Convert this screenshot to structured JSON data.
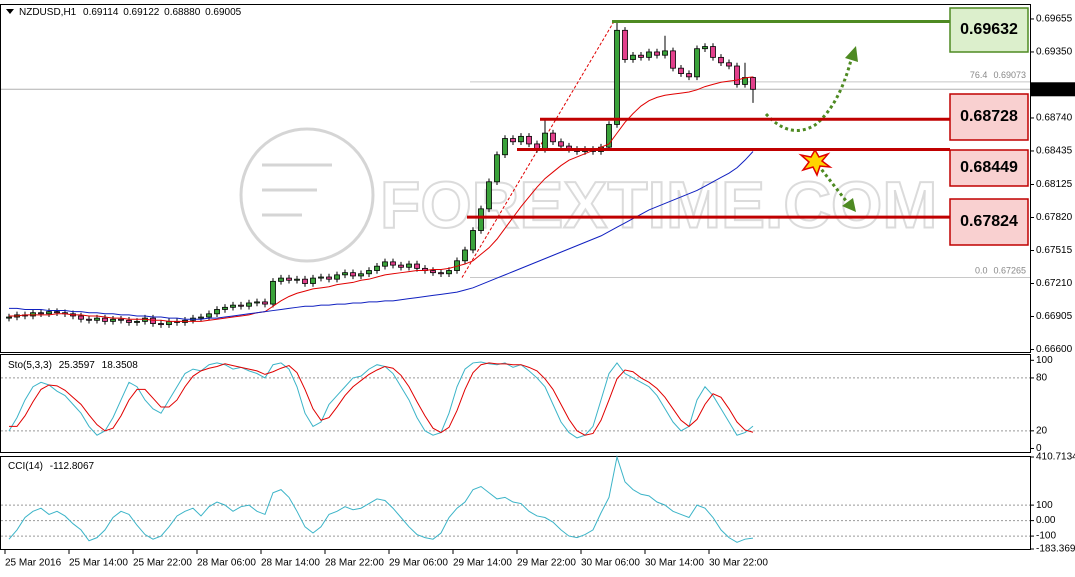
{
  "chart_data": [
    {
      "type": "candlestick",
      "symbol": "NZDUSD,H1",
      "header_values": [
        "0.69114",
        "0.69122",
        "0.68880",
        "0.69005"
      ],
      "watermark": "FOREXTIME.COM",
      "categories": [
        "25 Mar 2016",
        null,
        null,
        null,
        null,
        null,
        null,
        null,
        "25 Mar 14:00",
        null,
        null,
        null,
        null,
        null,
        null,
        null,
        "25 Mar 22:00",
        null,
        null,
        null,
        null,
        null,
        null,
        null,
        "28 Mar 06:00",
        null,
        null,
        null,
        null,
        null,
        null,
        null,
        "28 Mar 14:00",
        null,
        null,
        null,
        null,
        null,
        null,
        null,
        "28 Mar 22:00",
        null,
        null,
        null,
        null,
        null,
        null,
        null,
        "29 Mar 06:00",
        null,
        null,
        null,
        null,
        null,
        null,
        null,
        "29 Mar 14:00",
        null,
        null,
        null,
        null,
        null,
        null,
        null,
        "29 Mar 22:00",
        null,
        null,
        null,
        null,
        null,
        null,
        null,
        "30 Mar 06:00",
        null,
        null,
        null,
        null,
        null,
        null,
        null,
        "30 Mar 14:00",
        null,
        null,
        null,
        null,
        null,
        null,
        null,
        "30 Mar 22:00",
        null,
        null,
        null,
        null,
        null
      ],
      "open": [
        0.6689,
        0.669,
        0.6692,
        0.6691,
        0.6694,
        0.6693,
        0.6695,
        0.6694,
        0.6693,
        0.6691,
        0.6688,
        0.6687,
        0.6689,
        0.6686,
        0.6688,
        0.6687,
        0.6685,
        0.6686,
        0.6689,
        0.6684,
        0.6683,
        0.6686,
        0.6685,
        0.6687,
        0.6689,
        0.669,
        0.6693,
        0.6697,
        0.6699,
        0.6701,
        0.67,
        0.6703,
        0.6704,
        0.6702,
        0.6723,
        0.6726,
        0.6724,
        0.6725,
        0.6721,
        0.6726,
        0.6727,
        0.6725,
        0.6729,
        0.6731,
        0.6728,
        0.673,
        0.6733,
        0.6737,
        0.6741,
        0.6738,
        0.6736,
        0.6739,
        0.6735,
        0.6733,
        0.6731,
        0.673,
        0.6733,
        0.6742,
        0.6752,
        0.677,
        0.679,
        0.6815,
        0.684,
        0.6855,
        0.6852,
        0.6857,
        0.685,
        0.6845,
        0.686,
        0.6852,
        0.6848,
        0.6845,
        0.6843,
        0.6845,
        0.6843,
        0.6847,
        0.6868,
        0.6955,
        0.6928,
        0.6932,
        0.693,
        0.6935,
        0.6932,
        0.6936,
        0.692,
        0.6915,
        0.6912,
        0.6938,
        0.694,
        0.693,
        0.6925,
        0.6922,
        0.6905,
        0.69114
      ],
      "high": [
        0.6693,
        0.6695,
        0.6695,
        0.6697,
        0.6697,
        0.6698,
        0.6698,
        0.6697,
        0.6696,
        0.6694,
        0.6691,
        0.6692,
        0.6692,
        0.6691,
        0.6691,
        0.669,
        0.6689,
        0.6692,
        0.6692,
        0.6687,
        0.6689,
        0.6689,
        0.669,
        0.6692,
        0.6693,
        0.6696,
        0.67,
        0.6702,
        0.6704,
        0.6704,
        0.6706,
        0.6707,
        0.6707,
        0.6726,
        0.6729,
        0.6729,
        0.6728,
        0.6728,
        0.6729,
        0.673,
        0.673,
        0.6732,
        0.6734,
        0.6734,
        0.6733,
        0.6736,
        0.674,
        0.6744,
        0.6744,
        0.6741,
        0.6742,
        0.6742,
        0.6738,
        0.6736,
        0.6734,
        0.6736,
        0.6745,
        0.6755,
        0.6773,
        0.6793,
        0.6818,
        0.6843,
        0.6858,
        0.6858,
        0.686,
        0.686,
        0.6853,
        0.6873,
        0.6863,
        0.6855,
        0.6851,
        0.6848,
        0.6848,
        0.6848,
        0.685,
        0.6871,
        0.69632,
        0.6958,
        0.6935,
        0.6935,
        0.6938,
        0.6938,
        0.695,
        0.6939,
        0.6923,
        0.6918,
        0.6941,
        0.6943,
        0.6943,
        0.6933,
        0.6928,
        0.6925,
        0.6925,
        0.69122
      ],
      "low": [
        0.6686,
        0.6687,
        0.6688,
        0.6688,
        0.669,
        0.669,
        0.6691,
        0.669,
        0.6688,
        0.6685,
        0.6684,
        0.6684,
        0.6683,
        0.6683,
        0.6684,
        0.6682,
        0.6682,
        0.6683,
        0.6681,
        0.668,
        0.668,
        0.6682,
        0.6682,
        0.6684,
        0.6686,
        0.6687,
        0.669,
        0.6694,
        0.6696,
        0.6697,
        0.6697,
        0.67,
        0.6699,
        0.6699,
        0.672,
        0.6721,
        0.6721,
        0.6718,
        0.6718,
        0.6723,
        0.6722,
        0.6722,
        0.6726,
        0.6725,
        0.6725,
        0.6727,
        0.673,
        0.6734,
        0.6735,
        0.6733,
        0.6733,
        0.6732,
        0.673,
        0.6728,
        0.6727,
        0.6727,
        0.673,
        0.6739,
        0.6749,
        0.6767,
        0.6787,
        0.6812,
        0.6837,
        0.6849,
        0.6849,
        0.6847,
        0.6842,
        0.6842,
        0.6849,
        0.6845,
        0.6842,
        0.684,
        0.684,
        0.684,
        0.684,
        0.6844,
        0.6865,
        0.6925,
        0.6925,
        0.6927,
        0.6927,
        0.6929,
        0.6929,
        0.6917,
        0.6912,
        0.6909,
        0.6909,
        0.6935,
        0.6927,
        0.6922,
        0.6919,
        0.6902,
        0.6902,
        0.6888
      ],
      "close": [
        0.669,
        0.6692,
        0.6691,
        0.6694,
        0.6693,
        0.6695,
        0.6694,
        0.6693,
        0.6691,
        0.6688,
        0.6687,
        0.6689,
        0.6686,
        0.6688,
        0.6687,
        0.6685,
        0.6686,
        0.6689,
        0.6684,
        0.6683,
        0.6686,
        0.6685,
        0.6687,
        0.6689,
        0.669,
        0.6693,
        0.6697,
        0.6699,
        0.6701,
        0.67,
        0.6703,
        0.6704,
        0.6702,
        0.6723,
        0.6726,
        0.6724,
        0.6725,
        0.6721,
        0.6726,
        0.6727,
        0.6725,
        0.6729,
        0.6731,
        0.6728,
        0.673,
        0.6733,
        0.6737,
        0.6741,
        0.6738,
        0.6736,
        0.6739,
        0.6735,
        0.6733,
        0.6731,
        0.673,
        0.6733,
        0.6742,
        0.6752,
        0.677,
        0.679,
        0.6815,
        0.684,
        0.6855,
        0.6852,
        0.6857,
        0.685,
        0.6845,
        0.686,
        0.6852,
        0.6848,
        0.6845,
        0.6843,
        0.6845,
        0.6843,
        0.6847,
        0.6868,
        0.6955,
        0.6928,
        0.6932,
        0.693,
        0.6935,
        0.6932,
        0.6936,
        0.692,
        0.6915,
        0.6912,
        0.6938,
        0.694,
        0.693,
        0.6925,
        0.6922,
        0.6905,
        0.69114,
        0.69005
      ],
      "up_color": "#3aa23a",
      "down_color": "#e2408c",
      "lines": [
        {
          "color": "#e00000",
          "values": [
            0.6691,
            0.6691,
            0.6692,
            0.6692,
            0.6692,
            0.6692,
            0.6693,
            0.6693,
            0.6692,
            0.6692,
            0.6691,
            0.6691,
            0.669,
            0.6689,
            0.6689,
            0.6688,
            0.6688,
            0.6688,
            0.6687,
            0.6687,
            0.6686,
            0.6686,
            0.6686,
            0.6686,
            0.6686,
            0.6687,
            0.6688,
            0.6689,
            0.669,
            0.6691,
            0.6692,
            0.6694,
            0.6695,
            0.67,
            0.6705,
            0.6709,
            0.6712,
            0.6714,
            0.6716,
            0.6717,
            0.6718,
            0.672,
            0.6721,
            0.6722,
            0.6724,
            0.6725,
            0.6727,
            0.6729,
            0.673,
            0.6731,
            0.6732,
            0.6733,
            0.6733,
            0.6734,
            0.6734,
            0.6735,
            0.6737,
            0.6739,
            0.6742,
            0.6748,
            0.6754,
            0.6762,
            0.6772,
            0.6782,
            0.6792,
            0.6801,
            0.681,
            0.6818,
            0.6824,
            0.683,
            0.6835,
            0.6838,
            0.6841,
            0.6844,
            0.6847,
            0.685,
            0.686,
            0.687,
            0.6878,
            0.6885,
            0.689,
            0.6893,
            0.6895,
            0.6896,
            0.6897,
            0.6898,
            0.69,
            0.6903,
            0.6905,
            0.6907,
            0.6908,
            0.6909,
            0.6911,
            0.6912
          ]
        },
        {
          "color": "#1020c0",
          "values": [
            0.6698,
            0.6698,
            0.6697,
            0.6697,
            0.6697,
            0.6696,
            0.6696,
            0.6696,
            0.6695,
            0.6695,
            0.6694,
            0.6694,
            0.6693,
            0.6693,
            0.6692,
            0.6692,
            0.6691,
            0.6691,
            0.669,
            0.669,
            0.6689,
            0.6689,
            0.6688,
            0.6688,
            0.6688,
            0.6689,
            0.6689,
            0.669,
            0.6691,
            0.6692,
            0.6693,
            0.6694,
            0.6695,
            0.6696,
            0.6697,
            0.6698,
            0.6699,
            0.67,
            0.67,
            0.6701,
            0.6701,
            0.6702,
            0.6702,
            0.6703,
            0.6703,
            0.6704,
            0.6704,
            0.6705,
            0.6705,
            0.6706,
            0.6707,
            0.6708,
            0.6709,
            0.671,
            0.6711,
            0.6712,
            0.6713,
            0.6715,
            0.6717,
            0.672,
            0.6723,
            0.6726,
            0.6729,
            0.6732,
            0.6735,
            0.6738,
            0.6741,
            0.6744,
            0.6747,
            0.675,
            0.6753,
            0.6756,
            0.6759,
            0.6762,
            0.6765,
            0.6769,
            0.6773,
            0.6777,
            0.6781,
            0.6785,
            0.6789,
            0.6792,
            0.6795,
            0.6798,
            0.6801,
            0.6804,
            0.6807,
            0.6811,
            0.6815,
            0.6819,
            0.6823,
            0.6828,
            0.6835,
            0.6843
          ]
        }
      ],
      "ylim": [
        0.66577,
        0.69784
      ],
      "yticks": [
        0.69655,
        {
          "value": 0.6935,
          "label": "0.69350"
        },
        {
          "value": 0.6874,
          "label": "0.68740"
        },
        0.68435,
        0.68125,
        {
          "value": 0.6782,
          "label": "0.67820"
        },
        0.67515,
        {
          "value": 0.6721,
          "label": "0.67210"
        },
        0.66905,
        {
          "value": 0.666,
          "label": "0.66600"
        }
      ],
      "current_price": 0.69005,
      "fib": [
        {
          "label": "76.4",
          "price": 0.69073
        },
        {
          "label": "0.0",
          "price": 0.67265
        }
      ],
      "levels": [
        {
          "value": 0.69632,
          "color": "#4e8a22",
          "fill": "#dcefcc",
          "text_color": "#3d6b1a"
        },
        {
          "value": 0.68728,
          "color": "#c00000",
          "fill": "#f9d0d0",
          "text_color": "#c00000"
        },
        {
          "value": 0.68449,
          "color": "#c00000",
          "fill": "#f9d0d0",
          "text_color": "#c00000"
        },
        {
          "value": 0.67824,
          "color": "#c00000",
          "fill": "#f9d0d0",
          "text_color": "#c00000"
        }
      ]
    },
    {
      "type": "line",
      "title": "Sto(5,3,3)",
      "series": [
        {
          "color": "#3cb4c8",
          "values": [
            20,
            35,
            55,
            70,
            75,
            72,
            65,
            60,
            50,
            40,
            25,
            15,
            20,
            35,
            55,
            75,
            70,
            55,
            45,
            40,
            55,
            70,
            85,
            90,
            88,
            95,
            97,
            95,
            90,
            92,
            88,
            85,
            80,
            95,
            97,
            90,
            70,
            40,
            25,
            30,
            50,
            60,
            70,
            80,
            82,
            90,
            95,
            93,
            85,
            70,
            55,
            35,
            20,
            15,
            18,
            40,
            70,
            90,
            97,
            98,
            96,
            95,
            97,
            92,
            95,
            88,
            80,
            70,
            50,
            30,
            18,
            12,
            15,
            25,
            55,
            85,
            97,
            85,
            80,
            75,
            70,
            60,
            45,
            30,
            20,
            25,
            55,
            70,
            60,
            45,
            30,
            15,
            18,
            25.3597
          ]
        },
        {
          "color": "#e00000",
          "values": [
            25,
            25,
            37,
            53,
            67,
            72,
            71,
            66,
            58,
            50,
            38,
            27,
            20,
            23,
            37,
            55,
            67,
            67,
            57,
            47,
            47,
            55,
            70,
            82,
            88,
            91,
            93,
            96,
            94,
            92,
            90,
            88,
            84,
            87,
            91,
            94,
            86,
            67,
            45,
            32,
            35,
            47,
            60,
            70,
            77,
            84,
            89,
            93,
            91,
            83,
            70,
            53,
            37,
            23,
            18,
            24,
            43,
            67,
            86,
            95,
            97,
            96,
            96,
            95,
            95,
            92,
            88,
            79,
            67,
            50,
            33,
            20,
            15,
            17,
            32,
            55,
            79,
            89,
            87,
            80,
            75,
            68,
            58,
            45,
            32,
            25,
            33,
            50,
            62,
            58,
            45,
            30,
            21,
            18.3508
          ]
        }
      ],
      "ylim": [
        -4,
        106
      ],
      "yticks": [
        100,
        80,
        20,
        0
      ]
    },
    {
      "type": "line",
      "title": "CCI(14)",
      "series": [
        {
          "color": "#3cb4c8",
          "values": [
            -120,
            -60,
            20,
            60,
            80,
            40,
            60,
            30,
            -20,
            -60,
            -130,
            -110,
            -60,
            20,
            60,
            40,
            -30,
            -90,
            -120,
            -100,
            -40,
            30,
            60,
            80,
            30,
            90,
            120,
            100,
            60,
            90,
            100,
            60,
            40,
            180,
            200,
            150,
            60,
            -40,
            -80,
            -40,
            40,
            60,
            90,
            70,
            80,
            110,
            140,
            130,
            80,
            20,
            -40,
            -90,
            -110,
            -120,
            -80,
            20,
            80,
            120,
            200,
            220,
            180,
            140,
            150,
            120,
            110,
            60,
            30,
            20,
            -10,
            -60,
            -100,
            -110,
            -90,
            -60,
            50,
            150,
            410.7134,
            250,
            200,
            170,
            160,
            120,
            100,
            60,
            40,
            20,
            100,
            80,
            20,
            -60,
            -110,
            -140,
            -120,
            -112.8067
          ]
        }
      ],
      "ylim": [
        -183.3693,
        410.7134
      ],
      "yticks": [
        410.7134,
        100,
        {
          "value": 0,
          "label": "0.00"
        },
        -100,
        -183.3693
      ]
    }
  ]
}
